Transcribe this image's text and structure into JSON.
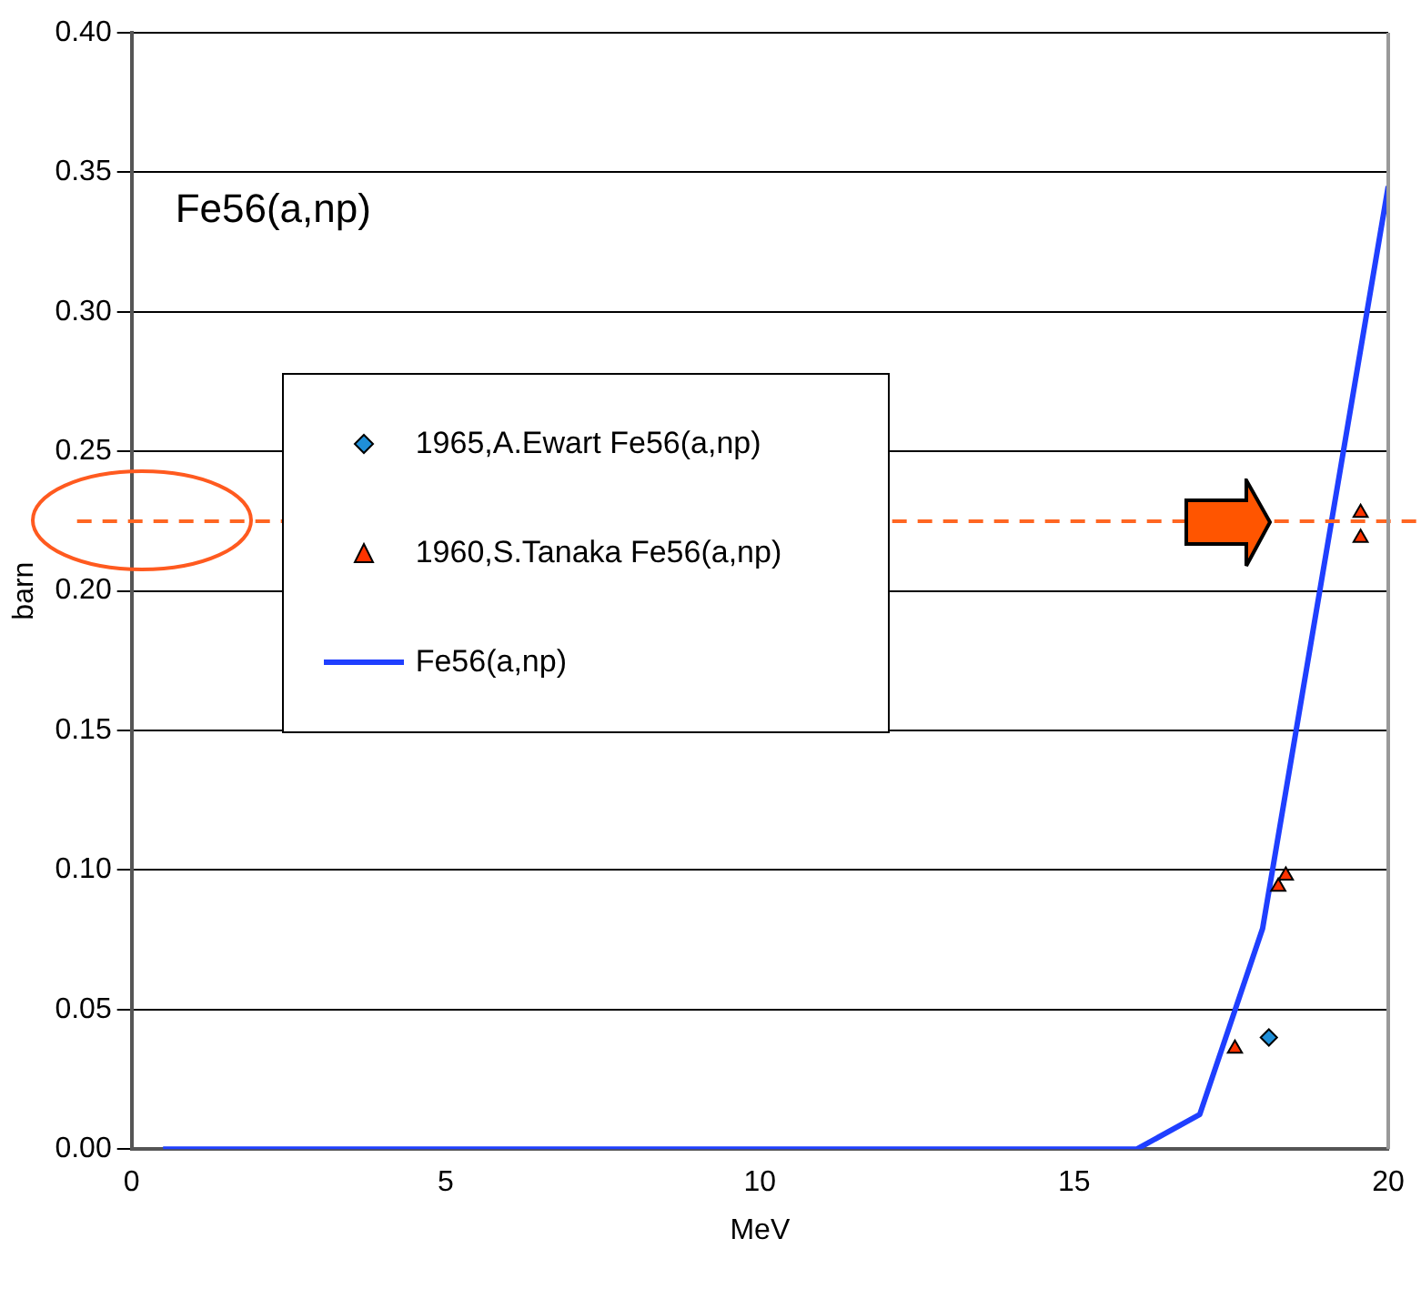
{
  "chart_data": {
    "type": "scatter",
    "title": "Fe56(a,np)",
    "xlabel": "MeV",
    "ylabel": "barn",
    "xlim": [
      0,
      20
    ],
    "xticks": [
      0,
      5,
      10,
      15,
      20
    ],
    "ylim": [
      0,
      0.4
    ],
    "yticks": [
      {
        "value": 0,
        "label": "0.00"
      },
      0.05,
      {
        "value": 0.1,
        "label": "0.10"
      },
      0.15,
      {
        "value": 0.2,
        "label": "0.20"
      },
      0.25,
      {
        "value": 0.3,
        "label": "0.30"
      },
      0.35,
      {
        "value": 0.4,
        "label": "0.40"
      }
    ],
    "grid": "y",
    "legend": "left",
    "series": [
      {
        "name": "1965,A.Ewart Fe56(a,np)",
        "marker": "diamond",
        "color": "#1f8fd8",
        "x": [
          18.1
        ],
        "values": [
          0.04
        ]
      },
      {
        "name": "1960,S.Tanaka Fe56(a,np)",
        "marker": "triangle",
        "color": "#ff3300",
        "x": [
          17.56,
          18.25,
          18.37,
          19.56,
          19.56
        ],
        "values": [
          0.036,
          0.094,
          0.098,
          0.228,
          0.219
        ]
      },
      {
        "name": "Fe56(a,np)",
        "type": "line",
        "marker": "none",
        "line_style": "solid",
        "color": "#1f3fff",
        "x": [
          0.5,
          16,
          17,
          18,
          20
        ],
        "values": [
          0,
          0,
          0.0124,
          0.079,
          0.345
        ]
      }
    ],
    "ref_lines": [
      {
        "axis": "y",
        "value": 0.225,
        "color": "#ff6622",
        "line_style": "dashed"
      }
    ]
  }
}
